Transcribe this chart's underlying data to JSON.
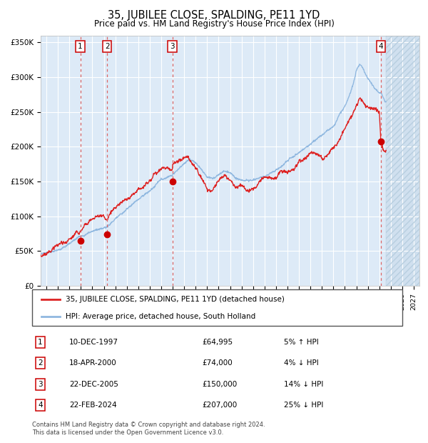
{
  "title": "35, JUBILEE CLOSE, SPALDING, PE11 1YD",
  "subtitle": "Price paid vs. HM Land Registry's House Price Index (HPI)",
  "ylim": [
    0,
    360000
  ],
  "yticks": [
    0,
    50000,
    100000,
    150000,
    200000,
    250000,
    300000,
    350000
  ],
  "ytick_labels": [
    "£0",
    "£50K",
    "£100K",
    "£150K",
    "£200K",
    "£250K",
    "£300K",
    "£350K"
  ],
  "xlim_start": 1994.5,
  "xlim_end": 2027.5,
  "background_color": "#ffffff",
  "plot_bg_color": "#ddeaf7",
  "hatch_bg_color": "#d0e0ef",
  "grid_color": "#ffffff",
  "hpi_line_color": "#90b8e0",
  "price_line_color": "#dd2222",
  "transaction_marker_color": "#cc0000",
  "dashed_line_color": "#dd6666",
  "future_start": 2024.6,
  "transactions": [
    {
      "num": 1,
      "year": 1997.95,
      "price": 64995
    },
    {
      "num": 2,
      "year": 2000.29,
      "price": 74000
    },
    {
      "num": 3,
      "year": 2005.97,
      "price": 150000
    },
    {
      "num": 4,
      "year": 2024.14,
      "price": 207000
    }
  ],
  "legend_entries": [
    {
      "label": "35, JUBILEE CLOSE, SPALDING, PE11 1YD (detached house)",
      "color": "#dd2222"
    },
    {
      "label": "HPI: Average price, detached house, South Holland",
      "color": "#90b8e0"
    }
  ],
  "footer": "Contains HM Land Registry data © Crown copyright and database right 2024.\nThis data is licensed under the Open Government Licence v3.0.",
  "table_rows": [
    {
      "num": 1,
      "date": "10-DEC-1997",
      "price": "£64,995",
      "pct": "5% ↑ HPI"
    },
    {
      "num": 2,
      "date": "18-APR-2000",
      "price": "£74,000",
      "pct": "4% ↓ HPI"
    },
    {
      "num": 3,
      "date": "22-DEC-2005",
      "price": "£150,000",
      "pct": "14% ↓ HPI"
    },
    {
      "num": 4,
      "date": "22-FEB-2024",
      "price": "£207,000",
      "pct": "25% ↓ HPI"
    }
  ]
}
